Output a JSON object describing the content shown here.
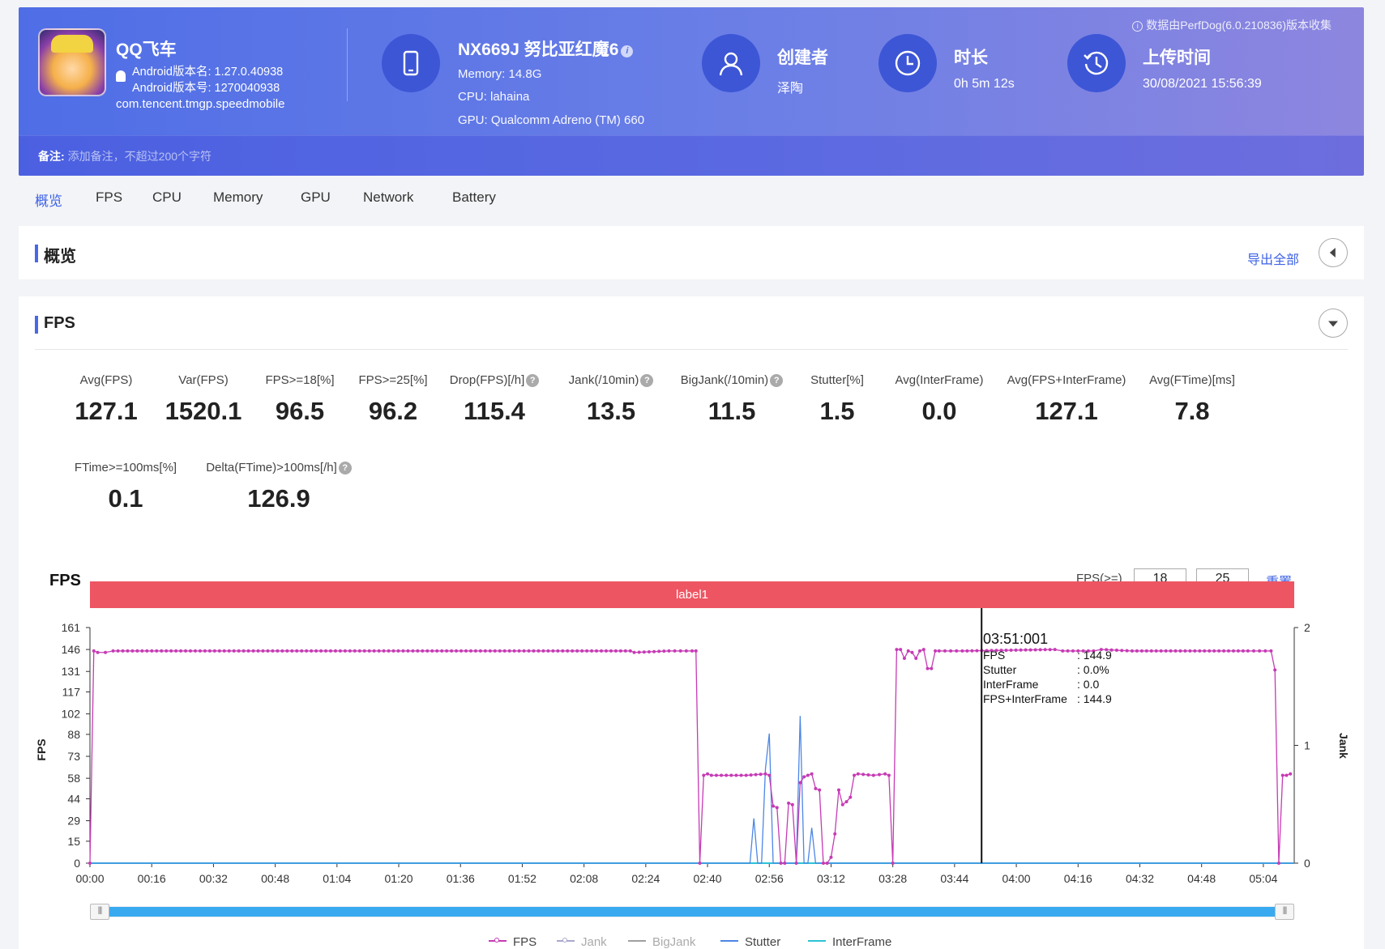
{
  "colors": {
    "fps": "#c63bb5",
    "jank": "#a8a8cc",
    "bigjank": "#a0a0a0",
    "stutter": "#4d86e6",
    "interframe": "#2dc3d6",
    "accent": "#3f63e6",
    "label_bar": "#ee5562"
  },
  "header": {
    "collect_note": "数据由PerfDog(6.0.210836)版本收集",
    "app": {
      "name": "QQ飞车",
      "version_name": "Android版本名: 1.27.0.40938",
      "version_code": "Android版本号: 1270040938",
      "package": "com.tencent.tmgp.speedmobile"
    },
    "device": {
      "name": "NX669J 努比亚红魔6",
      "memory": "Memory: 14.8G",
      "cpu": "CPU: lahaina",
      "gpu": "GPU: Qualcomm Adreno (TM) 660"
    },
    "creator": {
      "title": "创建者",
      "value": "泽陶"
    },
    "duration": {
      "title": "时长",
      "value": "0h 5m 12s"
    },
    "upload": {
      "title": "上传时间",
      "value": "30/08/2021 15:56:39"
    },
    "note_label": "备注:",
    "note_placeholder": "添加备注，不超过200个字符"
  },
  "tabs": [
    "概览",
    "FPS",
    "CPU",
    "Memory",
    "GPU",
    "Network",
    "Battery"
  ],
  "overview": {
    "title": "概览",
    "export_label": "导出全部"
  },
  "fps_section": {
    "title": "FPS",
    "metrics": [
      {
        "label": "Avg(FPS)",
        "value": "127.1"
      },
      {
        "label": "Var(FPS)",
        "value": "1520.1"
      },
      {
        "label": "FPS>=18[%]",
        "value": "96.5"
      },
      {
        "label": "FPS>=25[%]",
        "value": "96.2"
      },
      {
        "label": "Drop(FPS)[/h]",
        "value": "115.4",
        "help": true
      },
      {
        "label": "Jank(/10min)",
        "value": "13.5",
        "help": true
      },
      {
        "label": "BigJank(/10min)",
        "value": "11.5",
        "help": true
      },
      {
        "label": "Stutter[%]",
        "value": "1.5"
      },
      {
        "label": "Avg(InterFrame)",
        "value": "0.0"
      },
      {
        "label": "Avg(FPS+InterFrame)",
        "value": "127.1"
      },
      {
        "label": "Avg(FTime)[ms]",
        "value": "7.8"
      },
      {
        "label": "FTime>=100ms[%]",
        "value": "0.1"
      },
      {
        "label": "Delta(FTime)>100ms[/h]",
        "value": "126.9",
        "help": true
      }
    ],
    "help_glyph": "?",
    "chart_title": "FPS",
    "threshold_label": "FPS(>=)",
    "threshold_values": [
      "18",
      "25"
    ],
    "reset_label": "重置",
    "label_bar": "label1"
  },
  "chart_data": {
    "type": "line",
    "title": "FPS",
    "ylabel": "FPS",
    "y2label": "Jank",
    "yticks": [
      "161",
      "146",
      "131",
      "117",
      "102",
      "88",
      "73",
      "58",
      "44",
      "29",
      "15",
      "0"
    ],
    "ylim": [
      0,
      161
    ],
    "y2ticks": [
      "2",
      "1",
      "0"
    ],
    "y2lim": [
      0,
      2
    ],
    "xlim": [
      0,
      312
    ],
    "xticks": [
      "00:00",
      "00:16",
      "00:32",
      "00:48",
      "01:04",
      "01:20",
      "01:36",
      "01:52",
      "02:08",
      "02:24",
      "02:40",
      "02:56",
      "03:12",
      "03:28",
      "03:44",
      "04:00",
      "04:16",
      "04:32",
      "04:48",
      "05:04"
    ],
    "fps_series": {
      "name": "FPS",
      "points": [
        [
          0,
          0
        ],
        [
          1,
          145
        ],
        [
          2,
          144
        ],
        [
          4,
          144
        ],
        [
          6,
          145
        ],
        [
          140,
          145
        ],
        [
          141,
          144
        ],
        [
          150,
          145
        ],
        [
          156,
          145
        ],
        [
          157,
          145
        ],
        [
          158,
          0
        ],
        [
          159,
          60
        ],
        [
          160,
          61
        ],
        [
          161,
          60
        ],
        [
          170,
          60
        ],
        [
          175,
          61
        ],
        [
          176,
          60
        ],
        [
          177,
          39
        ],
        [
          178,
          38
        ],
        [
          179,
          0
        ],
        [
          180,
          0
        ],
        [
          181,
          41
        ],
        [
          182,
          40
        ],
        [
          183,
          0
        ],
        [
          184,
          55
        ],
        [
          185,
          59
        ],
        [
          186,
          60
        ],
        [
          187,
          61
        ],
        [
          188,
          51
        ],
        [
          189,
          50
        ],
        [
          190,
          0
        ],
        [
          191,
          0
        ],
        [
          192,
          4
        ],
        [
          193,
          20
        ],
        [
          194,
          50
        ],
        [
          195,
          40
        ],
        [
          196,
          42
        ],
        [
          197,
          45
        ],
        [
          198,
          60
        ],
        [
          199,
          61
        ],
        [
          203,
          60
        ],
        [
          206,
          61
        ],
        [
          207,
          60
        ],
        [
          208,
          0
        ],
        [
          209,
          146
        ],
        [
          210,
          146
        ],
        [
          211,
          140
        ],
        [
          212,
          145
        ],
        [
          213,
          144
        ],
        [
          214,
          140
        ],
        [
          215,
          145
        ],
        [
          216,
          146
        ],
        [
          217,
          133
        ],
        [
          218,
          133
        ],
        [
          219,
          145
        ],
        [
          220,
          145
        ],
        [
          226,
          145
        ],
        [
          250,
          146
        ],
        [
          252,
          145
        ],
        [
          260,
          145
        ],
        [
          262,
          146
        ],
        [
          270,
          145
        ],
        [
          300,
          145
        ],
        [
          306,
          145
        ],
        [
          307,
          132
        ],
        [
          308,
          0
        ],
        [
          309,
          60
        ],
        [
          310,
          60
        ],
        [
          311,
          61
        ]
      ]
    },
    "stutter_series": {
      "name": "Stutter",
      "points": [
        [
          0,
          0
        ],
        [
          171,
          0
        ],
        [
          172,
          0.38
        ],
        [
          173,
          0
        ],
        [
          174,
          0
        ],
        [
          175,
          0.8
        ],
        [
          176,
          1.1
        ],
        [
          177,
          0
        ],
        [
          183,
          0
        ],
        [
          184,
          1.25
        ],
        [
          185,
          0
        ],
        [
          186,
          0
        ],
        [
          187,
          0.3
        ],
        [
          188,
          0
        ],
        [
          312,
          0
        ]
      ]
    },
    "interframe_series": {
      "name": "InterFrame",
      "points": [
        [
          0,
          0
        ],
        [
          312,
          0
        ]
      ]
    },
    "legend": [
      "FPS",
      "Jank",
      "BigJank",
      "Stutter",
      "InterFrame"
    ],
    "cursor": {
      "x": 231,
      "time": "03:51:001",
      "rows": [
        {
          "k": "FPS",
          "v": ": 144.9"
        },
        {
          "k": "Stutter",
          "v": ": 0.0%"
        },
        {
          "k": "InterFrame",
          "v": ": 0.0"
        },
        {
          "k": "FPS+InterFrame",
          "v": ": 144.9"
        }
      ]
    }
  }
}
